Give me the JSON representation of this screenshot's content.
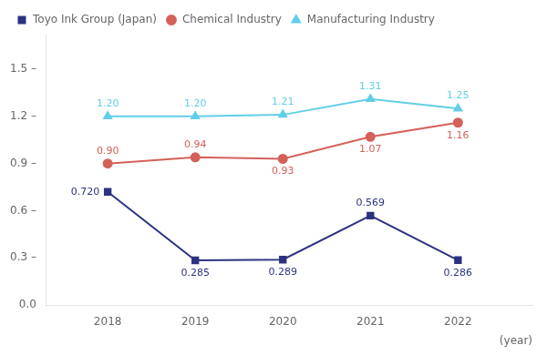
{
  "chart_data": {
    "type": "line",
    "x": [
      2018,
      2019,
      2020,
      2021,
      2022
    ],
    "series": [
      {
        "name": "Toyo Ink Group (Japan)",
        "color": "#2c3280",
        "marker": "square",
        "values": [
          0.72,
          0.285,
          0.289,
          0.569,
          0.286
        ],
        "value_labels": [
          "0.720",
          "0.285",
          "0.289",
          "0.569",
          "0.286"
        ]
      },
      {
        "name": "Chemical Industry",
        "color": "#d4605a",
        "marker": "circle",
        "values": [
          0.9,
          0.94,
          0.93,
          1.07,
          1.16
        ],
        "value_labels": [
          "0.90",
          "0.94",
          "0.93",
          "1.07",
          "1.16"
        ]
      },
      {
        "name": "Manufacturing Industry",
        "color": "#62cee8",
        "marker": "triangle",
        "values": [
          1.2,
          1.2,
          1.21,
          1.31,
          1.25
        ],
        "value_labels": [
          "1.20",
          "1.20",
          "1.21",
          "1.31",
          "1.25"
        ]
      }
    ],
    "x_label": "(year)",
    "xlim": [
      2017.3,
      2022.85
    ],
    "xticks": [
      2018,
      2019,
      2020,
      2021,
      2022
    ],
    "ylim": [
      0.0,
      1.72
    ],
    "yticks": [
      {
        "value": 0.0,
        "label": "0.0"
      },
      {
        "value": 0.3,
        "label": "0.3 –"
      },
      {
        "value": 0.6,
        "label": "0.6 –"
      },
      {
        "value": 0.9,
        "label": "0.9 –"
      },
      {
        "value": 1.2,
        "label": "1.2 –"
      },
      {
        "value": 1.5,
        "label": "1.5 –"
      }
    ],
    "grid": false,
    "legend": "upper left",
    "data_labels": true
  }
}
